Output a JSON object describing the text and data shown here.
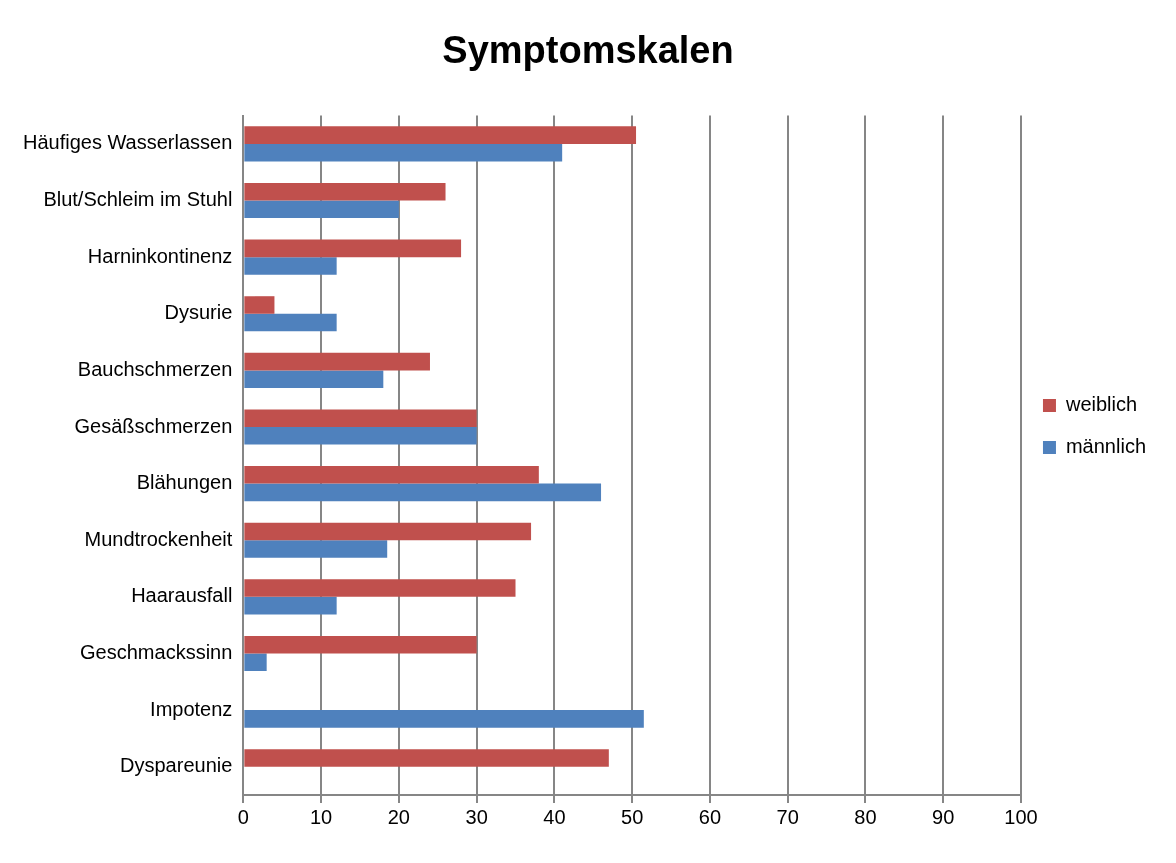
{
  "chart_data": {
    "type": "bar",
    "orientation": "horizontal",
    "title": "Symptomskalen",
    "categories": [
      "Häufiges Wasserlassen",
      "Blut/Schleim im Stuhl",
      "Harninkontinenz",
      "Dysurie",
      "Bauchschmerzen",
      "Gesäßschmerzen",
      "Blähungen",
      "Mundtrockenheit",
      "Haarausfall",
      "Geschmackssinn",
      "Impotenz",
      "Dyspareunie"
    ],
    "series": [
      {
        "name": "weiblich",
        "color": "#c0504d",
        "values": [
          50.5,
          26,
          28,
          4,
          24,
          30,
          38,
          37,
          35,
          30,
          null,
          47
        ]
      },
      {
        "name": "männlich",
        "color": "#4f81bd",
        "values": [
          41,
          20,
          12,
          12,
          18,
          30,
          46,
          18.5,
          12,
          3,
          51.5,
          null
        ]
      }
    ],
    "xlim": [
      0,
      100
    ],
    "xticks": [
      0,
      10,
      20,
      30,
      40,
      50,
      60,
      70,
      80,
      90,
      100
    ],
    "grid": "x",
    "legend": "right"
  }
}
